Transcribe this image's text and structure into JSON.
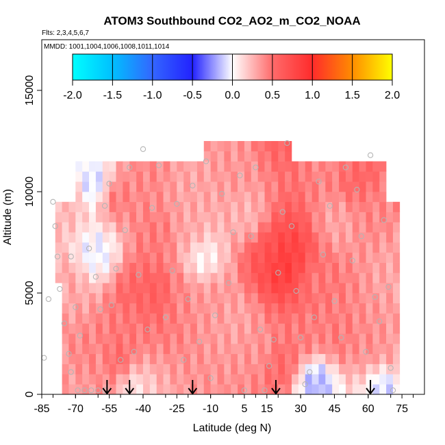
{
  "chart_data": {
    "type": "heatmap",
    "title": "ATOM3 Southbound CO2_AO2_m_CO2_NOAA",
    "subtitle_flights": "Flts: 2,3,4,5,6,7",
    "subtitle_dates": "MMDD: 1001,1004,1006,1008,1011,1014",
    "xlabel": "Latitude (deg N)",
    "ylabel": "Altitude (m)",
    "xlim": [
      -85,
      85
    ],
    "ylim": [
      0,
      17500
    ],
    "x_tick_labels": [
      "-85",
      "-70",
      "-55",
      "-40",
      "-25",
      "-10",
      "5",
      "15",
      "30",
      "45",
      "60",
      "75"
    ],
    "y_tick_labels": [
      "0",
      "5000",
      "10000",
      "15000"
    ],
    "colorbar": {
      "min": -2.0,
      "max": 2.0,
      "tick_labels": [
        "-2.0",
        "-1.5",
        "-1.0",
        "-0.5",
        "0.0",
        "0.5",
        "1.0",
        "1.5",
        "2.0"
      ],
      "colors": [
        "#00ffff",
        "#00bfff",
        "#3366ff",
        "#2222ff",
        "#ffffff",
        "#ff6b6b",
        "#ff2b2b",
        "#ff8c00",
        "#ffff00"
      ]
    },
    "arrow_latitudes": [
      -56,
      -46,
      -18,
      19,
      61
    ],
    "cells": [
      {
        "lat": -69,
        "alt": 600,
        "v": 0.3
      },
      {
        "lat": -66,
        "alt": 1200,
        "v": 0.45
      },
      {
        "lat": -60,
        "alt": 1200,
        "v": 0.35
      },
      {
        "lat": -52,
        "alt": 1200,
        "v": 0.7
      },
      {
        "lat": -50,
        "alt": 700,
        "v": 0.4
      },
      {
        "lat": -48,
        "alt": 3000,
        "v": 0.45
      },
      {
        "lat": -45,
        "alt": 4800,
        "v": 0.55
      },
      {
        "lat": -35,
        "alt": 4800,
        "v": 0.6
      },
      {
        "lat": -25,
        "alt": 4600,
        "v": 0.4
      },
      {
        "lat": -10,
        "alt": 4500,
        "v": 0.35
      },
      {
        "lat": 0,
        "alt": 3500,
        "v": 0.3
      },
      {
        "lat": 10,
        "alt": 2000,
        "v": 0.35
      },
      {
        "lat": 20,
        "alt": 1200,
        "v": 0.55
      },
      {
        "lat": 30,
        "alt": 2500,
        "v": 0.45
      },
      {
        "lat": 45,
        "alt": 2500,
        "v": 0.45
      },
      {
        "lat": 60,
        "alt": 2000,
        "v": 0.4
      },
      {
        "lat": 68,
        "alt": 1500,
        "v": 0.35
      },
      {
        "lat": 20,
        "alt": 6200,
        "v": 0.95
      },
      {
        "lat": 24,
        "alt": 6500,
        "v": 0.8
      },
      {
        "lat": 15,
        "alt": 6600,
        "v": 0.65
      },
      {
        "lat": 35,
        "alt": 5500,
        "v": 0.45
      },
      {
        "lat": -35,
        "alt": 7500,
        "v": 0.45
      },
      {
        "lat": -20,
        "alt": 7800,
        "v": 0.3
      },
      {
        "lat": -55,
        "alt": 9500,
        "v": 0.5
      },
      {
        "lat": -40,
        "alt": 10500,
        "v": 0.4
      },
      {
        "lat": -20,
        "alt": 10200,
        "v": 0.3
      },
      {
        "lat": 0,
        "alt": 11000,
        "v": 0.35
      },
      {
        "lat": 20,
        "alt": 12500,
        "v": 0.55
      },
      {
        "lat": 40,
        "alt": 11600,
        "v": 0.4
      },
      {
        "lat": 55,
        "alt": 10300,
        "v": 0.55
      },
      {
        "lat": 62,
        "alt": 9000,
        "v": 0.4
      },
      {
        "lat": 5,
        "alt": 8500,
        "v": 0.25
      },
      {
        "lat": 45,
        "alt": 8200,
        "v": 0.3
      },
      {
        "lat": -75,
        "alt": 5000,
        "v": 0.3
      },
      {
        "lat": -75,
        "alt": 9000,
        "v": 0.25
      },
      {
        "lat": 70,
        "alt": 6000,
        "v": 0.3
      },
      {
        "lat": -62,
        "alt": 6800,
        "v": -0.05
      },
      {
        "lat": -15,
        "alt": 6500,
        "v": 0.02
      },
      {
        "lat": -62,
        "alt": 10000,
        "v": -0.15
      },
      {
        "lat": 35,
        "alt": 400,
        "v": -0.2
      },
      {
        "lat": 66,
        "alt": 400,
        "v": -0.15
      },
      {
        "lat": -48,
        "alt": 400,
        "v": -0.1
      }
    ],
    "points": [
      {
        "lat": -80,
        "alt": 9500
      },
      {
        "lat": -79,
        "alt": 8300
      },
      {
        "lat": -78,
        "alt": 6800
      },
      {
        "lat": -77,
        "alt": 5200
      },
      {
        "lat": -75,
        "alt": 3500
      },
      {
        "lat": -73,
        "alt": 2000
      },
      {
        "lat": -72,
        "alt": 1100
      },
      {
        "lat": -69,
        "alt": 200
      },
      {
        "lat": -66,
        "alt": 200
      },
      {
        "lat": -63,
        "alt": 200
      },
      {
        "lat": -60,
        "alt": 200
      },
      {
        "lat": -57,
        "alt": 200
      },
      {
        "lat": -72,
        "alt": 6800
      },
      {
        "lat": -70,
        "alt": 4300
      },
      {
        "lat": -68,
        "alt": 2900
      },
      {
        "lat": -64,
        "alt": 7200
      },
      {
        "lat": -61,
        "alt": 5800
      },
      {
        "lat": -59,
        "alt": 4200
      },
      {
        "lat": -57,
        "alt": 9300
      },
      {
        "lat": -55,
        "alt": 10400
      },
      {
        "lat": -54,
        "alt": 4400
      },
      {
        "lat": -52,
        "alt": 6200
      },
      {
        "lat": -50,
        "alt": 1700
      },
      {
        "lat": -48,
        "alt": 8100
      },
      {
        "lat": -46,
        "alt": 11200
      },
      {
        "lat": -44,
        "alt": 2100
      },
      {
        "lat": -42,
        "alt": 5900
      },
      {
        "lat": -40,
        "alt": 12100
      },
      {
        "lat": -38,
        "alt": 3200
      },
      {
        "lat": -36,
        "alt": 9200
      },
      {
        "lat": -33,
        "alt": 11300
      },
      {
        "lat": -30,
        "alt": 3800
      },
      {
        "lat": -27,
        "alt": 6100
      },
      {
        "lat": -25,
        "alt": 9400
      },
      {
        "lat": -22,
        "alt": 1700
      },
      {
        "lat": -20,
        "alt": 4700
      },
      {
        "lat": -18,
        "alt": 10300
      },
      {
        "lat": -15,
        "alt": 2600
      },
      {
        "lat": -12,
        "alt": 11500
      },
      {
        "lat": -10,
        "alt": 800
      },
      {
        "lat": -8,
        "alt": 3900
      },
      {
        "lat": -5,
        "alt": 9900
      },
      {
        "lat": -2,
        "alt": 5500
      },
      {
        "lat": 0,
        "alt": 8000
      },
      {
        "lat": 3,
        "alt": 10800
      },
      {
        "lat": 5,
        "alt": 200
      },
      {
        "lat": 8,
        "alt": 7800
      },
      {
        "lat": 10,
        "alt": 11200
      },
      {
        "lat": 12,
        "alt": 3200
      },
      {
        "lat": 14,
        "alt": 200
      },
      {
        "lat": 16,
        "alt": 1400
      },
      {
        "lat": 18,
        "alt": 2700
      },
      {
        "lat": 20,
        "alt": 6000
      },
      {
        "lat": 22,
        "alt": 9000
      },
      {
        "lat": 24,
        "alt": 12400
      },
      {
        "lat": 26,
        "alt": 8300
      },
      {
        "lat": 28,
        "alt": 5100
      },
      {
        "lat": 30,
        "alt": 2800
      },
      {
        "lat": 32,
        "alt": 500
      },
      {
        "lat": 34,
        "alt": 1100
      },
      {
        "lat": 36,
        "alt": 3800
      },
      {
        "lat": 38,
        "alt": 10500
      },
      {
        "lat": 40,
        "alt": 6900
      },
      {
        "lat": 43,
        "alt": 9300
      },
      {
        "lat": 45,
        "alt": 4600
      },
      {
        "lat": 48,
        "alt": 2800
      },
      {
        "lat": 50,
        "alt": 11200
      },
      {
        "lat": 53,
        "alt": 6600
      },
      {
        "lat": 55,
        "alt": 10100
      },
      {
        "lat": 57,
        "alt": 7800
      },
      {
        "lat": 59,
        "alt": 2100
      },
      {
        "lat": 61,
        "alt": 11800
      },
      {
        "lat": 63,
        "alt": 4800
      },
      {
        "lat": 65,
        "alt": 3600
      },
      {
        "lat": 67,
        "alt": 8600
      },
      {
        "lat": 69,
        "alt": 5300
      },
      {
        "lat": 70,
        "alt": 1300
      },
      {
        "lat": 71,
        "alt": 200
      },
      {
        "lat": -84,
        "alt": 1800
      },
      {
        "lat": -82,
        "alt": 4700
      }
    ]
  }
}
